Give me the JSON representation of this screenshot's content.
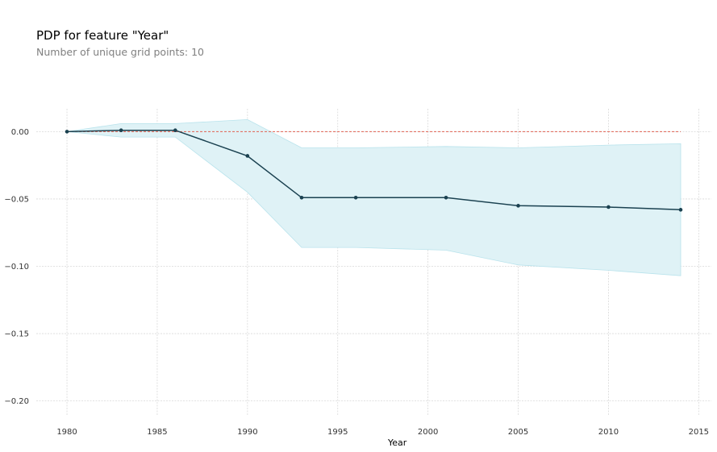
{
  "title": "PDP for feature \"Year\"",
  "subtitle": "Number of unique grid points: 10",
  "chart_data": {
    "type": "line",
    "title": "PDP for feature \"Year\"",
    "subtitle": "Number of unique grid points: 10",
    "xlabel": "Year",
    "ylabel": "",
    "xlim": [
      1978.3,
      2015.7
    ],
    "ylim": [
      -0.211,
      0.017
    ],
    "xticks": [
      1980,
      1985,
      1990,
      1995,
      2000,
      2005,
      2010,
      2015
    ],
    "xtick_labels": [
      "1980",
      "1985",
      "1990",
      "1995",
      "2000",
      "2005",
      "2010",
      "2015"
    ],
    "yticks": [
      0.0,
      -0.05,
      -0.1,
      -0.15,
      -0.2
    ],
    "ytick_labels": [
      "0.00",
      "−0.05",
      "−0.10",
      "−0.15",
      "−0.20"
    ],
    "grid": true,
    "series": [
      {
        "x": [
          1980,
          1983,
          1986,
          1990,
          1993,
          1996,
          2001,
          2005,
          2010,
          2014
        ],
        "values": [
          0.0,
          0.001,
          0.001,
          -0.018,
          -0.049,
          -0.049,
          -0.049,
          -0.055,
          -0.056,
          -0.058
        ],
        "upper": [
          0.0,
          0.006,
          0.006,
          0.009,
          -0.012,
          -0.012,
          -0.011,
          -0.012,
          -0.01,
          -0.009
        ],
        "lower": [
          0.0,
          -0.004,
          -0.004,
          -0.045,
          -0.086,
          -0.086,
          -0.088,
          -0.099,
          -0.103,
          -0.107
        ]
      }
    ],
    "reference_line": 0.0,
    "colors": {
      "line": "#1a4150",
      "band": "#dff2f6",
      "band_edge": "#b9e3ec",
      "reference": "#e06050",
      "grid": "#d8d8d8"
    }
  }
}
